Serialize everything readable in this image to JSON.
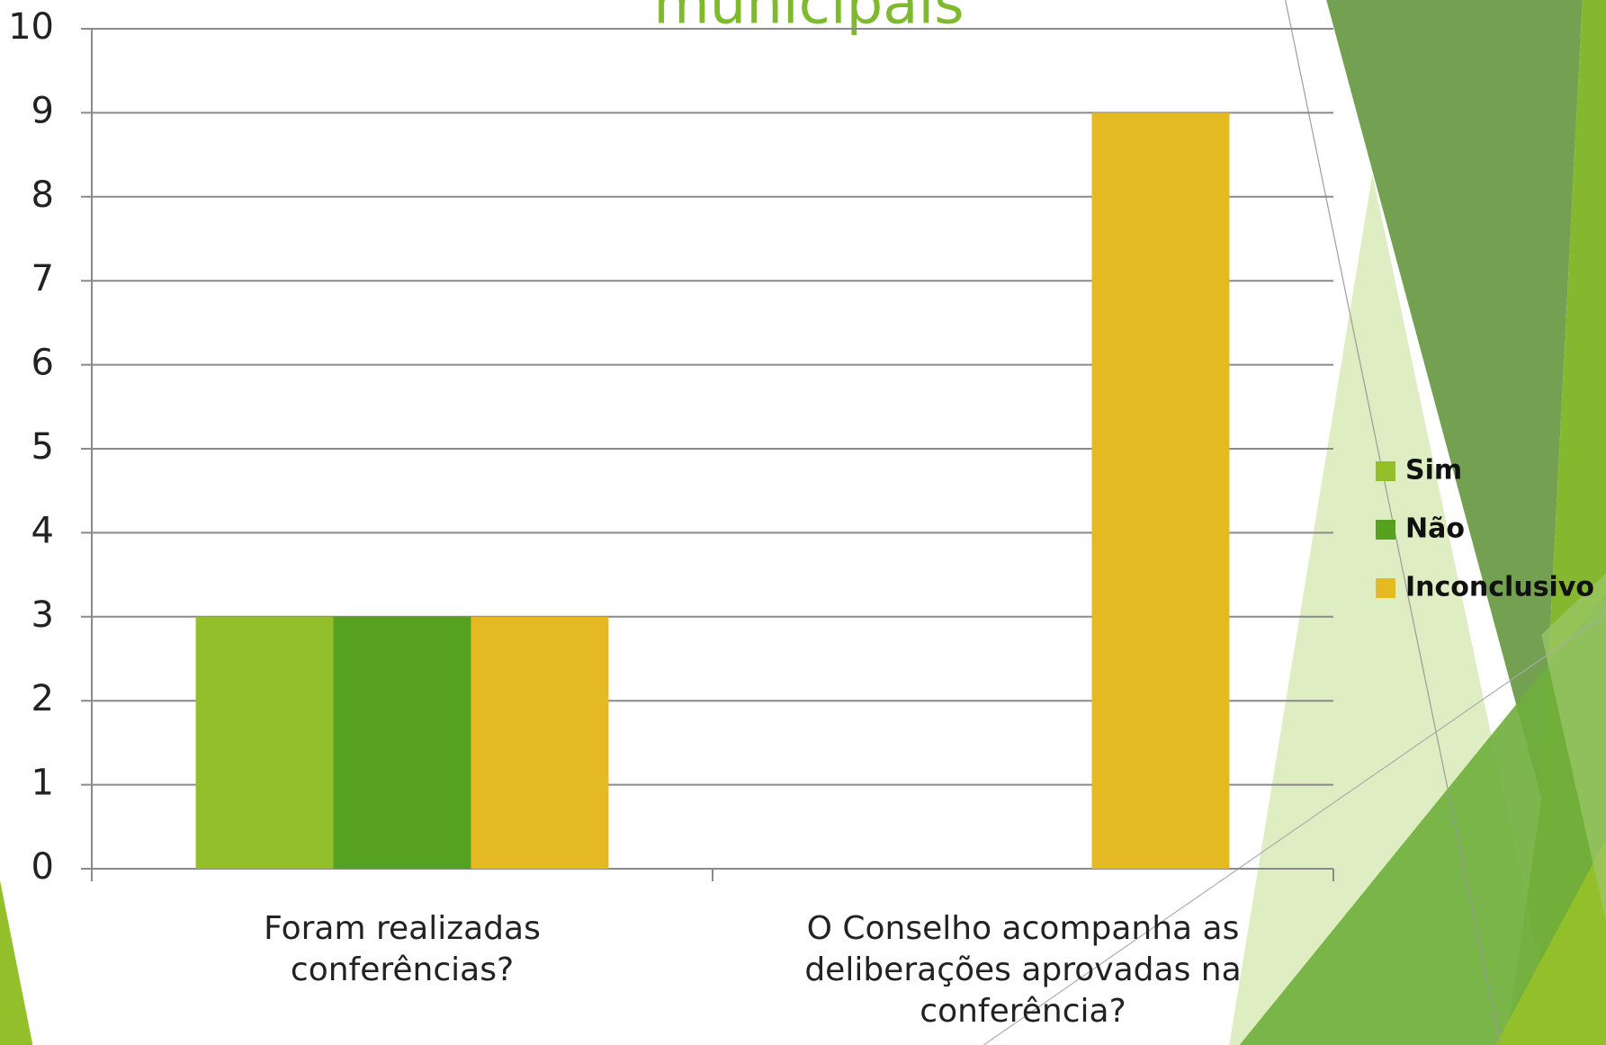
{
  "chart_data": {
    "type": "bar",
    "title": "municipais",
    "categories": [
      "Foram realizadas conferências?",
      "O Conselho acompanha as deliberações aprovadas na conferência?"
    ],
    "series": [
      {
        "name": "Sim",
        "color": "#93c02a",
        "values": [
          3,
          0
        ]
      },
      {
        "name": "Não",
        "color": "#57a121",
        "values": [
          3,
          0
        ]
      },
      {
        "name": "Inconclusivo",
        "color": "#e4b921",
        "values": [
          3,
          9
        ]
      }
    ],
    "ylim": [
      0,
      10
    ],
    "yticks": [
      0,
      1,
      2,
      3,
      4,
      5,
      6,
      7,
      8,
      9,
      10
    ],
    "grid": true,
    "legend": "right"
  }
}
